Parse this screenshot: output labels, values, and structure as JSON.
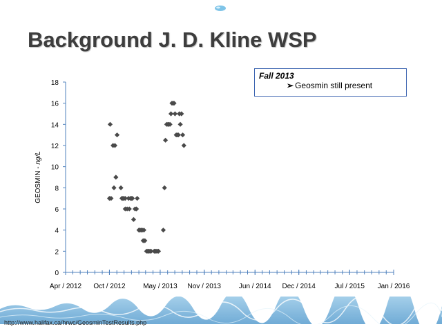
{
  "slide": {
    "title": "Background J. D. Kline WSP",
    "source_url": "http://www.halifax.ca/hrwc/GeosminTestResults.php"
  },
  "note": {
    "title": "Fall 2013",
    "bullet": "Geosmin still present"
  },
  "colors": {
    "title": "#3d3d3d",
    "points": "#4a4a4a",
    "axis": "#4f81bd",
    "note_border": "#3c64b0",
    "water": "#6fa8d6"
  },
  "chart_data": {
    "type": "scatter",
    "ylabel_prefix": "GEOSMIN - ",
    "ylabel_unit": "ng/L",
    "xlabel": "",
    "title": "",
    "ylim": [
      0,
      18
    ],
    "yticks": [
      "0",
      "2",
      "4",
      "6",
      "8",
      "10",
      "12",
      "14",
      "16",
      "18"
    ],
    "xlim": [
      "2012-04-01",
      "2016-01-01"
    ],
    "xticks": [
      {
        "date": "2012-04-01",
        "label": "Apr / 2012"
      },
      {
        "date": "2012-10-01",
        "label": "Oct / 2012"
      },
      {
        "date": "2013-05-01",
        "label": "May / 2013"
      },
      {
        "date": "2013-11-01",
        "label": "Nov / 2013"
      },
      {
        "date": "2014-06-01",
        "label": "Jun / 2014"
      },
      {
        "date": "2014-12-01",
        "label": "Dec / 2014"
      },
      {
        "date": "2015-07-01",
        "label": "Jul / 2015"
      },
      {
        "date": "2016-01-01",
        "label": "Jan / 2016"
      }
    ],
    "grid": false,
    "legend": "none",
    "marker": "diamond",
    "points": [
      {
        "x": "2012-10-01",
        "y": 7
      },
      {
        "x": "2012-10-04",
        "y": 14
      },
      {
        "x": "2012-10-08",
        "y": 7
      },
      {
        "x": "2012-10-16",
        "y": 12
      },
      {
        "x": "2012-10-20",
        "y": 8
      },
      {
        "x": "2012-10-24",
        "y": 12
      },
      {
        "x": "2012-10-28",
        "y": 9
      },
      {
        "x": "2012-11-02",
        "y": 13
      },
      {
        "x": "2012-11-18",
        "y": 8
      },
      {
        "x": "2012-11-22",
        "y": 7
      },
      {
        "x": "2012-11-26",
        "y": 7
      },
      {
        "x": "2012-11-30",
        "y": 7
      },
      {
        "x": "2012-12-06",
        "y": 7
      },
      {
        "x": "2012-12-06",
        "y": 6
      },
      {
        "x": "2012-12-14",
        "y": 6
      },
      {
        "x": "2012-12-20",
        "y": 7
      },
      {
        "x": "2012-12-23",
        "y": 6
      },
      {
        "x": "2012-12-28",
        "y": 7
      },
      {
        "x": "2013-01-01",
        "y": 7
      },
      {
        "x": "2013-01-05",
        "y": 7
      },
      {
        "x": "2013-01-10",
        "y": 5
      },
      {
        "x": "2013-01-16",
        "y": 6
      },
      {
        "x": "2013-01-22",
        "y": 6
      },
      {
        "x": "2013-01-25",
        "y": 7
      },
      {
        "x": "2013-02-01",
        "y": 4
      },
      {
        "x": "2013-02-05",
        "y": 4
      },
      {
        "x": "2013-02-10",
        "y": 4
      },
      {
        "x": "2013-02-15",
        "y": 4
      },
      {
        "x": "2013-02-19",
        "y": 3
      },
      {
        "x": "2013-02-22",
        "y": 4
      },
      {
        "x": "2013-02-26",
        "y": 3
      },
      {
        "x": "2013-03-05",
        "y": 2
      },
      {
        "x": "2013-03-10",
        "y": 2
      },
      {
        "x": "2013-03-14",
        "y": 2
      },
      {
        "x": "2013-03-19",
        "y": 2
      },
      {
        "x": "2013-03-24",
        "y": 2
      },
      {
        "x": "2013-04-06",
        "y": 2
      },
      {
        "x": "2013-04-10",
        "y": 2
      },
      {
        "x": "2013-04-14",
        "y": 2
      },
      {
        "x": "2013-04-19",
        "y": 2
      },
      {
        "x": "2013-04-24",
        "y": 2
      },
      {
        "x": "2013-05-14",
        "y": 4
      },
      {
        "x": "2013-05-19",
        "y": 8
      },
      {
        "x": "2013-05-23",
        "y": 12.5
      },
      {
        "x": "2013-05-28",
        "y": 14
      },
      {
        "x": "2013-06-02",
        "y": 14
      },
      {
        "x": "2013-06-06",
        "y": 14
      },
      {
        "x": "2013-06-11",
        "y": 14
      },
      {
        "x": "2013-06-15",
        "y": 15
      },
      {
        "x": "2013-06-19",
        "y": 16
      },
      {
        "x": "2013-06-24",
        "y": 16
      },
      {
        "x": "2013-06-28",
        "y": 16
      },
      {
        "x": "2013-07-02",
        "y": 15
      },
      {
        "x": "2013-07-07",
        "y": 13
      },
      {
        "x": "2013-07-11",
        "y": 13
      },
      {
        "x": "2013-07-16",
        "y": 13
      },
      {
        "x": "2013-07-20",
        "y": 15
      },
      {
        "x": "2013-07-24",
        "y": 14
      },
      {
        "x": "2013-07-29",
        "y": 15
      },
      {
        "x": "2013-08-03",
        "y": 13
      },
      {
        "x": "2013-08-08",
        "y": 12
      }
    ]
  }
}
